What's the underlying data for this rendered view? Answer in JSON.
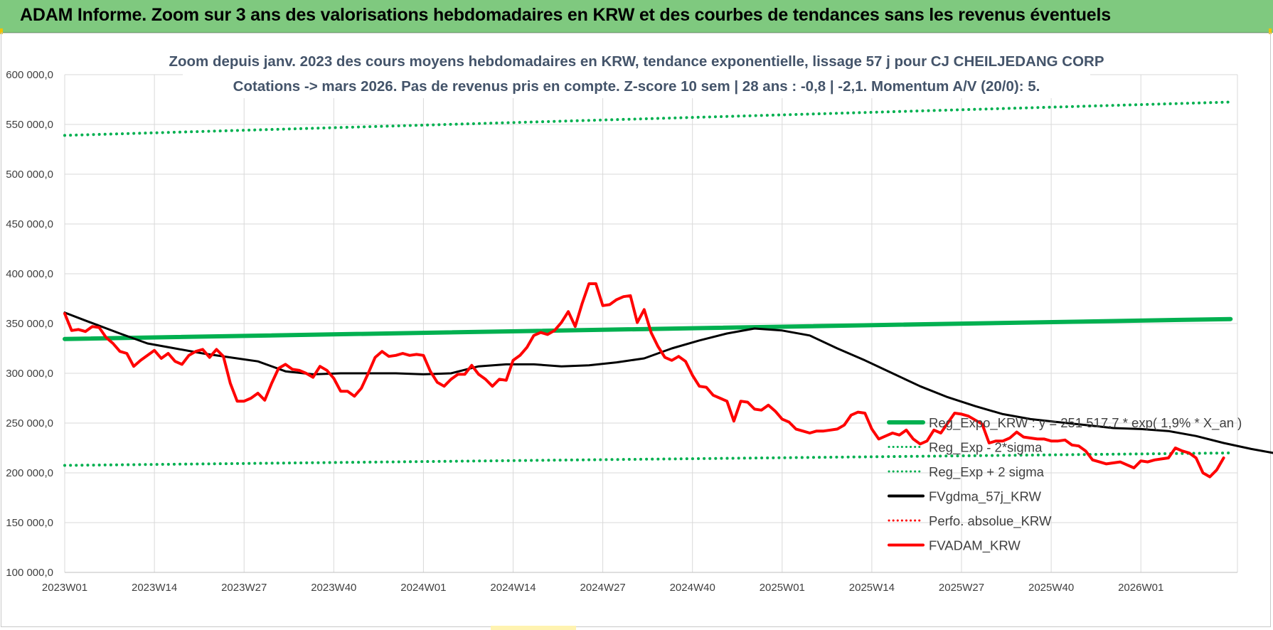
{
  "header": {
    "title": "ADAM Informe. Zoom sur 3 ans des valorisations hebdomadaires en KRW et des courbes de tendances sans les revenus éventuels"
  },
  "chart_data": {
    "type": "line",
    "title_line1": "Zoom depuis janv. 2023 des cours moyens hebdomadaires en KRW, tendance exponentielle, lissage 57 j pour CJ CHEILJEDANG CORP",
    "title_line2": "Cotations -> mars 2026. Pas de revenus pris en compte. Z-score 10 sem | 28 ans : -0,8 | -2,1. Momentum A/V (20/0): 5.",
    "xlabel": "",
    "ylabel": "",
    "ylim": [
      100000,
      600000
    ],
    "y_ticks": [
      "100 000,0",
      "150 000,0",
      "200 000,0",
      "250 000,0",
      "300 000,0",
      "350 000,0",
      "400 000,0",
      "450 000,0",
      "500 000,0",
      "550 000,0",
      "600 000,0"
    ],
    "x_ticks": [
      "2023W01",
      "2023W14",
      "2023W27",
      "2023W40",
      "2024W01",
      "2024W14",
      "2024W27",
      "2024W40",
      "2025W01",
      "2025W14",
      "2025W27",
      "2025W40",
      "2026W01"
    ],
    "x_count": 170,
    "grid": true,
    "legend_position": "right",
    "series": [
      {
        "name": "Reg_Expo_KRW : y = 251 517,7 * exp( 1,9% * X_an )",
        "color": "#00b050",
        "style": "solid-thick",
        "points": [
          [
            0,
            334500
          ],
          [
            169,
            354500
          ]
        ]
      },
      {
        "name": "Reg_Exp - 2*sigma",
        "color": "#00b050",
        "style": "dotted",
        "points": [
          [
            0,
            207500
          ],
          [
            169,
            220000
          ]
        ]
      },
      {
        "name": "Reg_Exp + 2 sigma",
        "color": "#00b050",
        "style": "dotted",
        "points": [
          [
            0,
            539000
          ],
          [
            169,
            572500
          ]
        ]
      },
      {
        "name": "FVgdma_57j_KRW",
        "color": "#000000",
        "style": "solid",
        "points": [
          [
            0,
            361000
          ],
          [
            3,
            353000
          ],
          [
            8,
            340000
          ],
          [
            12,
            330000
          ],
          [
            16,
            325000
          ],
          [
            20,
            320000
          ],
          [
            24,
            316000
          ],
          [
            28,
            312000
          ],
          [
            32,
            302000
          ],
          [
            36,
            299000
          ],
          [
            40,
            300000
          ],
          [
            44,
            300000
          ],
          [
            48,
            300000
          ],
          [
            52,
            299000
          ],
          [
            56,
            300000
          ],
          [
            60,
            307000
          ],
          [
            64,
            309000
          ],
          [
            68,
            309000
          ],
          [
            72,
            307000
          ],
          [
            76,
            308000
          ],
          [
            80,
            311000
          ],
          [
            84,
            315000
          ],
          [
            88,
            325000
          ],
          [
            92,
            333000
          ],
          [
            96,
            340000
          ],
          [
            100,
            345000
          ],
          [
            104,
            343000
          ],
          [
            108,
            338000
          ],
          [
            112,
            325000
          ],
          [
            116,
            313000
          ],
          [
            120,
            300000
          ],
          [
            124,
            287000
          ],
          [
            128,
            276000
          ],
          [
            132,
            267000
          ],
          [
            136,
            259000
          ],
          [
            140,
            254000
          ],
          [
            144,
            251000
          ],
          [
            148,
            248000
          ],
          [
            152,
            245000
          ],
          [
            156,
            244000
          ],
          [
            160,
            242000
          ],
          [
            164,
            237000
          ],
          [
            168,
            230000
          ],
          [
            172,
            224000
          ],
          [
            176,
            219000
          ],
          [
            180,
            216000
          ],
          [
            184,
            215000
          ],
          [
            188,
            214000
          ],
          [
            192,
            212000
          ],
          [
            196,
            212000
          ],
          [
            199,
            213000
          ]
        ]
      },
      {
        "name": "Perfo. absolue_KRW",
        "color": "#ff0000",
        "style": "dotted",
        "points": []
      },
      {
        "name": "FVADAM_KRW",
        "color": "#ff0000",
        "style": "solid-thick",
        "points": [
          [
            0,
            360000
          ],
          [
            1,
            343000
          ],
          [
            2,
            344000
          ],
          [
            3,
            342000
          ],
          [
            4,
            347000
          ],
          [
            5,
            346000
          ],
          [
            6,
            336000
          ],
          [
            7,
            330000
          ],
          [
            8,
            322000
          ],
          [
            9,
            320000
          ],
          [
            10,
            307000
          ],
          [
            11,
            313000
          ],
          [
            12,
            318000
          ],
          [
            13,
            323000
          ],
          [
            14,
            315000
          ],
          [
            15,
            320000
          ],
          [
            16,
            312000
          ],
          [
            17,
            309000
          ],
          [
            18,
            318000
          ],
          [
            19,
            322000
          ],
          [
            20,
            324000
          ],
          [
            21,
            316000
          ],
          [
            22,
            324000
          ],
          [
            23,
            317000
          ],
          [
            24,
            290000
          ],
          [
            25,
            272000
          ],
          [
            26,
            272000
          ],
          [
            27,
            275000
          ],
          [
            28,
            280000
          ],
          [
            29,
            273000
          ],
          [
            30,
            290000
          ],
          [
            31,
            305000
          ],
          [
            32,
            309000
          ],
          [
            33,
            304000
          ],
          [
            34,
            303000
          ],
          [
            35,
            300000
          ],
          [
            36,
            296000
          ],
          [
            37,
            307000
          ],
          [
            38,
            303000
          ],
          [
            39,
            295000
          ],
          [
            40,
            282000
          ],
          [
            41,
            282000
          ],
          [
            42,
            277000
          ],
          [
            43,
            285000
          ],
          [
            44,
            300000
          ],
          [
            45,
            316000
          ],
          [
            46,
            322000
          ],
          [
            47,
            317000
          ],
          [
            48,
            318000
          ],
          [
            49,
            320000
          ],
          [
            50,
            318000
          ],
          [
            51,
            319000
          ],
          [
            52,
            318000
          ],
          [
            53,
            302000
          ],
          [
            54,
            291000
          ],
          [
            55,
            287000
          ],
          [
            56,
            294000
          ],
          [
            57,
            299000
          ],
          [
            58,
            299000
          ],
          [
            59,
            308000
          ],
          [
            60,
            299000
          ],
          [
            61,
            294000
          ],
          [
            62,
            287000
          ],
          [
            63,
            294000
          ],
          [
            64,
            293000
          ],
          [
            65,
            313000
          ],
          [
            66,
            318000
          ],
          [
            67,
            326000
          ],
          [
            68,
            338000
          ],
          [
            69,
            341000
          ],
          [
            70,
            339000
          ],
          [
            71,
            343000
          ],
          [
            72,
            351000
          ],
          [
            73,
            362000
          ],
          [
            74,
            347000
          ],
          [
            75,
            370000
          ],
          [
            76,
            390000
          ],
          [
            77,
            390000
          ],
          [
            78,
            368000
          ],
          [
            79,
            369000
          ],
          [
            80,
            374000
          ],
          [
            81,
            377000
          ],
          [
            82,
            378000
          ],
          [
            83,
            351000
          ],
          [
            84,
            364000
          ],
          [
            85,
            341000
          ],
          [
            86,
            327000
          ],
          [
            87,
            316000
          ],
          [
            88,
            313000
          ],
          [
            89,
            317000
          ],
          [
            90,
            312000
          ],
          [
            91,
            298000
          ],
          [
            92,
            287000
          ],
          [
            93,
            286000
          ],
          [
            94,
            278000
          ],
          [
            95,
            275000
          ],
          [
            96,
            272000
          ],
          [
            97,
            252000
          ],
          [
            98,
            272000
          ],
          [
            99,
            271000
          ],
          [
            100,
            264000
          ],
          [
            101,
            263000
          ],
          [
            102,
            268000
          ],
          [
            103,
            262000
          ],
          [
            104,
            254000
          ],
          [
            105,
            251000
          ],
          [
            106,
            244000
          ],
          [
            107,
            242000
          ],
          [
            108,
            240000
          ],
          [
            109,
            242000
          ],
          [
            110,
            242000
          ],
          [
            111,
            243000
          ],
          [
            112,
            244000
          ],
          [
            113,
            248000
          ],
          [
            114,
            258000
          ],
          [
            115,
            261000
          ],
          [
            116,
            260000
          ],
          [
            117,
            244000
          ],
          [
            118,
            234000
          ],
          [
            119,
            237000
          ],
          [
            120,
            240000
          ],
          [
            121,
            238000
          ],
          [
            122,
            243000
          ],
          [
            123,
            234000
          ],
          [
            124,
            229000
          ],
          [
            125,
            232000
          ],
          [
            126,
            243000
          ],
          [
            127,
            240000
          ],
          [
            128,
            250000
          ],
          [
            129,
            260000
          ],
          [
            130,
            259000
          ],
          [
            131,
            257000
          ],
          [
            132,
            253000
          ],
          [
            133,
            249000
          ],
          [
            134,
            230000
          ],
          [
            135,
            232000
          ],
          [
            136,
            232000
          ],
          [
            137,
            235000
          ],
          [
            138,
            241000
          ],
          [
            139,
            236000
          ],
          [
            140,
            235000
          ],
          [
            141,
            234000
          ],
          [
            142,
            234000
          ],
          [
            143,
            232000
          ],
          [
            144,
            232000
          ],
          [
            145,
            233000
          ],
          [
            146,
            228000
          ],
          [
            147,
            227000
          ],
          [
            148,
            222000
          ],
          [
            149,
            213000
          ],
          [
            150,
            211000
          ],
          [
            151,
            209000
          ],
          [
            152,
            210000
          ],
          [
            153,
            211000
          ],
          [
            154,
            208000
          ],
          [
            155,
            205000
          ],
          [
            156,
            212000
          ],
          [
            157,
            211000
          ],
          [
            158,
            213000
          ],
          [
            159,
            214000
          ],
          [
            160,
            215000
          ],
          [
            161,
            225000
          ],
          [
            162,
            222000
          ],
          [
            163,
            220000
          ],
          [
            164,
            215000
          ],
          [
            165,
            200000
          ],
          [
            166,
            196000
          ],
          [
            167,
            203000
          ],
          [
            168,
            215000
          ]
        ]
      }
    ]
  }
}
